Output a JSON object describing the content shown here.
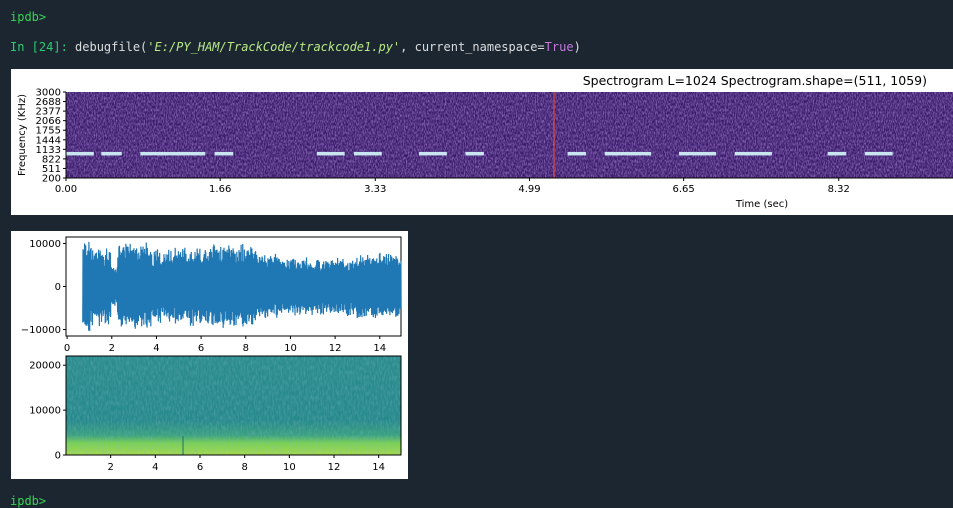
{
  "console": {
    "prompt_top": "ipdb>",
    "input_label": "In [24]:",
    "call_fn": "debugfile(",
    "call_path": "'E:/PY_HAM/TrackCode/trackcode1.py'",
    "call_mid": ", current_namespace=",
    "call_true": "True",
    "call_end": ")",
    "prompt_bottom": "ipdb>"
  },
  "colors": {
    "bg": "#1b2631",
    "spectrogram_bg": "#3a1b6b",
    "waveform": "#1f77b4",
    "spec2_bg": "#2a8f8a",
    "spec2_band": "#7ad151"
  },
  "chart_data": [
    {
      "type": "heatmap",
      "title": "Spectrogram L=1024 Spectrogram.shape=(511, 1059)",
      "xlabel": "Time (sec)",
      "ylabel": "Frequency (KHz)",
      "x_ticks": [
        "0.00",
        "1.66",
        "3.33",
        "4.99",
        "6.65",
        "8.32"
      ],
      "y_ticks": [
        "3000",
        "2688",
        "2377",
        "2066",
        "1755",
        "1444",
        "1133",
        "822",
        "511",
        "200"
      ],
      "colormap": "magma-like",
      "tone_band_frequency": 1000,
      "tone_segments": [
        [
          0.0,
          0.3
        ],
        [
          0.38,
          0.6
        ],
        [
          0.8,
          1.5
        ],
        [
          1.6,
          1.8
        ],
        [
          2.7,
          3.0
        ],
        [
          3.1,
          3.4
        ],
        [
          3.8,
          4.1
        ],
        [
          4.3,
          4.5
        ],
        [
          5.4,
          5.6
        ],
        [
          5.8,
          6.3
        ],
        [
          6.6,
          7.0
        ],
        [
          7.2,
          7.6
        ],
        [
          8.2,
          8.4
        ],
        [
          8.6,
          8.9
        ]
      ]
    },
    {
      "type": "line",
      "x_ticks": [
        "0",
        "2",
        "4",
        "6",
        "8",
        "10",
        "12",
        "14"
      ],
      "y_ticks": [
        "10000",
        "0",
        "−10000"
      ],
      "xlim": [
        0,
        15
      ],
      "ylim": [
        -11500,
        11500
      ]
    },
    {
      "type": "heatmap",
      "x_ticks": [
        "2",
        "4",
        "6",
        "8",
        "10",
        "12",
        "14"
      ],
      "y_ticks": [
        "20000",
        "10000",
        "0"
      ],
      "xlim": [
        0,
        15
      ],
      "ylim": [
        0,
        22050
      ]
    }
  ]
}
